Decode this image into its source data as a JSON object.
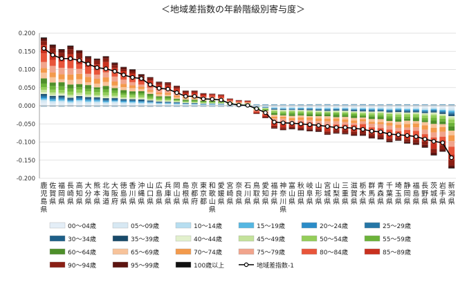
{
  "chart_data": {
    "type": "bar",
    "title": "＜地域差指数の年齢階級別寄与度＞",
    "ylim": [
      -0.2,
      0.2
    ],
    "yticks": [
      "0.200",
      "0.150",
      "0.100",
      "0.050",
      "0.000",
      "-0.050",
      "-0.100",
      "-0.150",
      "-0.200"
    ],
    "ytick_values": [
      0.2,
      0.15,
      0.1,
      0.05,
      0.0,
      -0.05,
      -0.1,
      -0.15,
      -0.2
    ],
    "grid": "horizontal",
    "legend_position": "bottom",
    "categories": [
      "鹿児島県",
      "佐賀県",
      "福岡県",
      "長崎県",
      "高知県",
      "大分県",
      "熊本県",
      "北海道",
      "大阪府",
      "徳島県",
      "香川県",
      "沖縄県",
      "山口県",
      "広島県",
      "兵庫県",
      "岡山県",
      "島根県",
      "京都府",
      "東京都",
      "和歌山県",
      "愛媛県",
      "宮崎県",
      "奈良県",
      "石川県",
      "鳥取県",
      "愛知県",
      "福井県",
      "神奈川県",
      "富山県",
      "秋田県",
      "岐阜県",
      "山形県",
      "宮城県",
      "山梨県",
      "三重県",
      "滋賀県",
      "栃木県",
      "群馬県",
      "青森県",
      "千葉県",
      "埼玉県",
      "静岡県",
      "福島県",
      "長野県",
      "茨城県",
      "岩手県",
      "新潟県"
    ],
    "age_groups": [
      "00～04歳",
      "05～09歳",
      "10～14歳",
      "15～19歳",
      "20～24歳",
      "25～29歳",
      "30～34歳",
      "35～39歳",
      "40～44歳",
      "45～49歳",
      "50～54歳",
      "55～59歳",
      "60～64歳",
      "65～69歳",
      "70～74歳",
      "75～79歳",
      "80～84歳",
      "85～89歳",
      "90～94歳",
      "95～99歳",
      "100歳以上"
    ],
    "age_colors": [
      "#e4eef7",
      "#d7e8f3",
      "#b7def0",
      "#55b7e2",
      "#2b8cc8",
      "#2576a6",
      "#1d5f88",
      "#184a6a",
      "#e2f0cd",
      "#c4e29b",
      "#94ce5a",
      "#6cb33a",
      "#4d8f2a",
      "#f7c39a",
      "#f39a4c",
      "#f1a48c",
      "#e8553a",
      "#c9301e",
      "#8a1f14",
      "#5c1410",
      "#111111"
    ],
    "line_series_name": "地域差指数-1",
    "line_values": [
      0.158,
      0.14,
      0.13,
      0.13,
      0.125,
      0.115,
      0.105,
      0.102,
      0.095,
      0.085,
      0.078,
      0.075,
      0.058,
      0.048,
      0.046,
      0.036,
      0.026,
      0.026,
      0.019,
      0.018,
      0.016,
      0.006,
      0.002,
      0.001,
      -0.008,
      -0.019,
      -0.045,
      -0.047,
      -0.048,
      -0.05,
      -0.052,
      -0.054,
      -0.057,
      -0.06,
      -0.06,
      -0.062,
      -0.065,
      -0.07,
      -0.072,
      -0.078,
      -0.08,
      -0.082,
      -0.085,
      -0.092,
      -0.098,
      -0.102,
      -0.143
    ]
  }
}
